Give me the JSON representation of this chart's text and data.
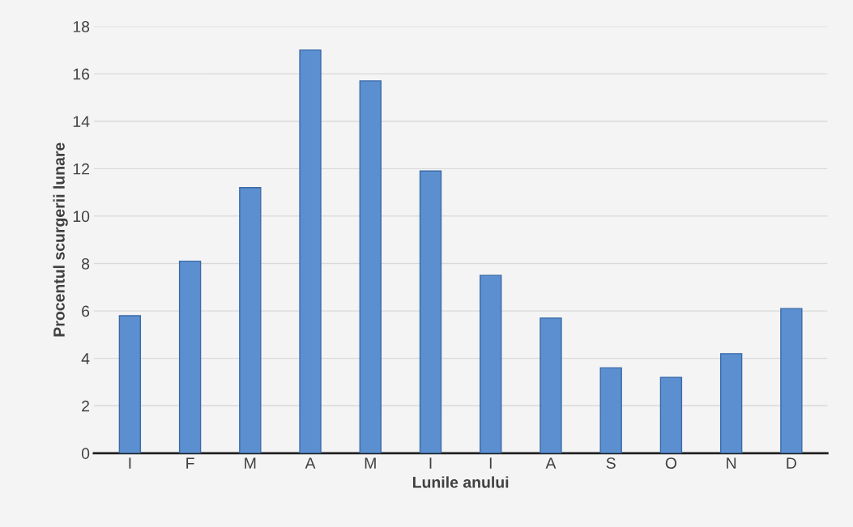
{
  "chart_data": {
    "type": "bar",
    "xlabel": "Lunile anului",
    "ylabel": "Procentul scurgerii lunare",
    "categories": [
      "I",
      "F",
      "M",
      "A",
      "M",
      "I",
      "I",
      "A",
      "S",
      "O",
      "N",
      "D"
    ],
    "values": [
      5.8,
      8.1,
      11.2,
      17.0,
      15.7,
      11.9,
      7.5,
      5.7,
      3.6,
      3.2,
      4.2,
      6.1
    ],
    "color": "#5b8fd0",
    "ylim": [
      0,
      18
    ],
    "yticks": [
      0,
      2,
      4,
      6,
      8,
      10,
      12,
      14,
      16,
      18
    ],
    "grid": "y"
  }
}
